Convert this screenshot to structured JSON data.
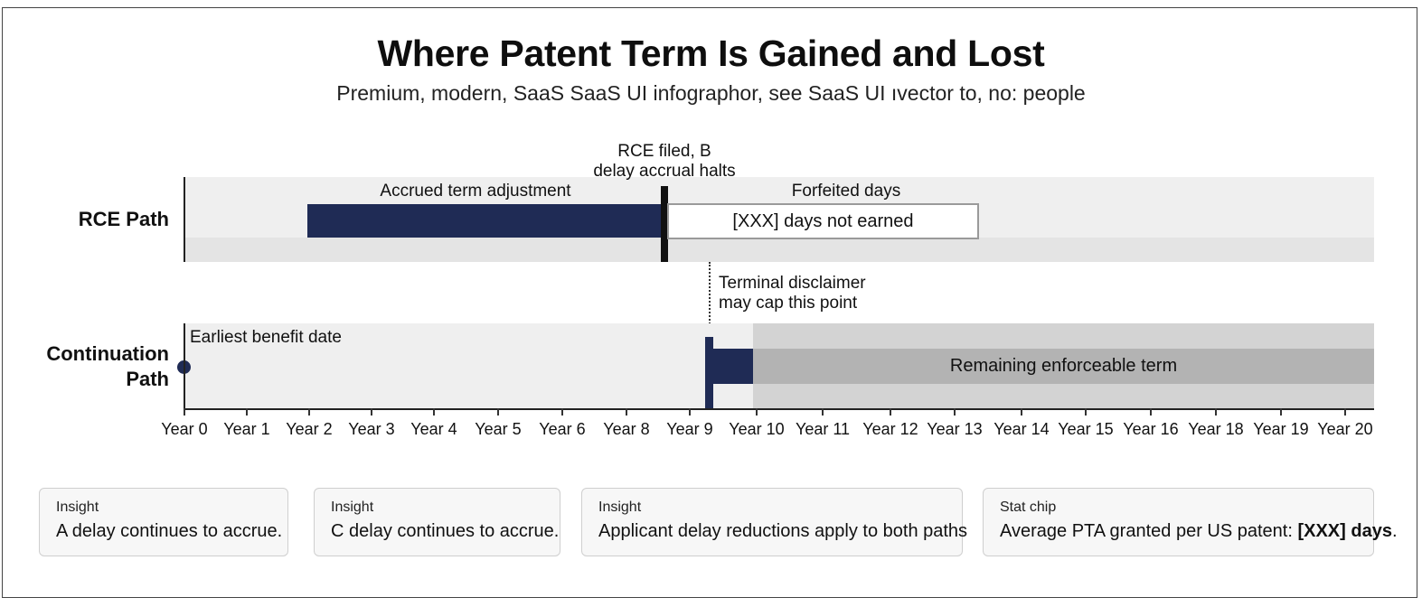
{
  "header": {
    "title": "Where Patent Term Is Gained and Lost",
    "subtitle": "Premium, modern, SaaS SaaS UI infographor, see SaaS UI ıvector  to, no: people"
  },
  "rows": {
    "rce": {
      "label": "RCE Path"
    },
    "continuation": {
      "label_line1": "Continuation",
      "label_line2": "Path"
    }
  },
  "rce_path": {
    "accrued_label": "Accrued term adjustment",
    "rce_filed_label_line1": "RCE filed, B",
    "rce_filed_label_line2": "delay accrual halts",
    "forfeited_label": "Forfeited days",
    "forfeited_box_text": "[XXX] days not earned"
  },
  "continuation_path": {
    "earliest_label": "Earliest benefit date",
    "disclaimer_line1": "Terminal disclaimer",
    "disclaimer_line2": "may cap this point",
    "remaining_label": "Remaining enforceable term"
  },
  "axis": {
    "ticks": [
      "Year 0",
      "Year 1",
      "Year 2",
      "Year 3",
      "Year 4",
      "Year 5",
      "Year 6",
      "Year 8",
      "Year 9",
      "Year 10",
      "Year 11",
      "Year 12",
      "Year 13",
      "Year 14",
      "Year 15",
      "Year 16",
      "Year 18",
      "Year 19",
      "Year 20"
    ]
  },
  "cards": [
    {
      "kicker": "Insight",
      "text": "A delay continues to accrue."
    },
    {
      "kicker": "Insight",
      "text": "C delay continues to accrue."
    },
    {
      "kicker": "Insight",
      "text": "Applicant delay reductions apply to both paths"
    },
    {
      "kicker": "Stat chip",
      "text_prefix": "Average PTA granted per US patent: ",
      "text_bold": "[XXX] days",
      "text_suffix": "."
    }
  ],
  "colors": {
    "navy": "#1f2b55",
    "band": "#efefef",
    "grey_region": "#d3d3d3",
    "grey_inner": "#b3b3b3"
  }
}
